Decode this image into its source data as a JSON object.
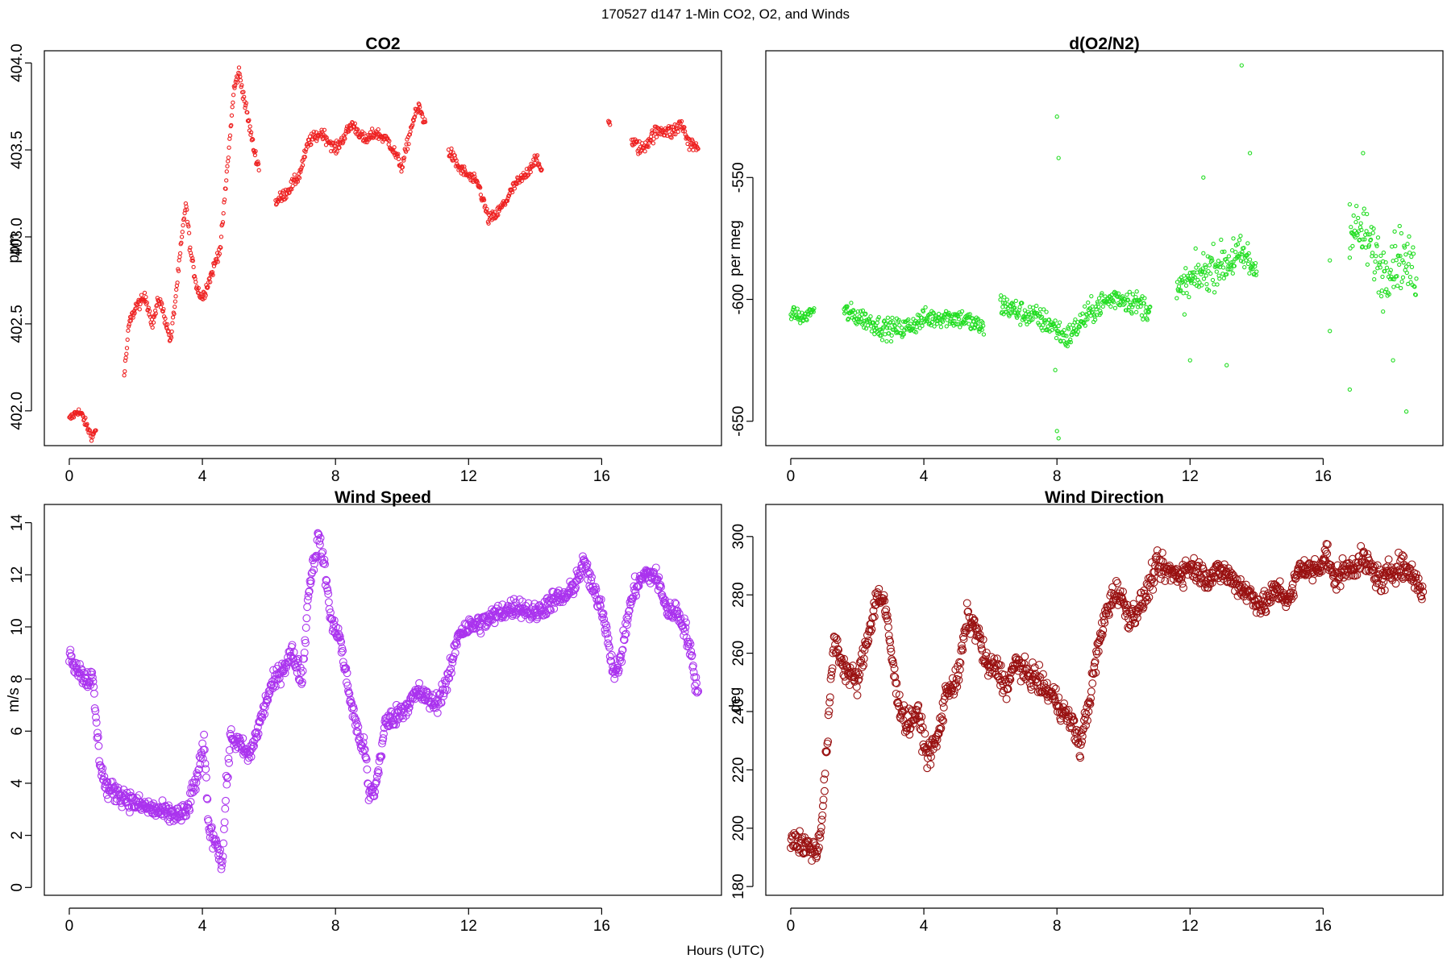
{
  "figure": {
    "title": "170527   d147   1-Min CO2, O2, and Winds",
    "xlabel": "Hours (UTC)"
  },
  "chart_data": [
    {
      "type": "scatter",
      "title": "CO2",
      "ylabel": "ppm",
      "xlabel": "",
      "xlim": [
        -0.75,
        19.6
      ],
      "ylim": [
        401.8,
        404.07
      ],
      "xticks": [
        0,
        4,
        8,
        12,
        16
      ],
      "yticks": [
        402.0,
        402.5,
        403.0,
        403.5,
        404.0
      ],
      "ytick_labels": [
        "402.0",
        "402.5",
        "403.0",
        "403.5",
        "404.0"
      ],
      "color": "#ee2222",
      "marker_size": "small",
      "grid": false,
      "segments": [
        {
          "x": [
            0.0,
            0.25,
            0.4,
            0.55,
            0.7,
            0.8
          ],
          "y": [
            401.95,
            402.0,
            401.97,
            401.9,
            401.85,
            401.9
          ],
          "noise": 0.03
        },
        {
          "x": [
            1.65,
            1.8,
            2.0,
            2.3,
            2.5,
            2.7,
            2.85,
            3.05,
            3.25,
            3.5,
            3.65,
            3.85,
            4.0,
            4.3,
            4.55,
            4.75,
            4.95,
            5.1,
            5.35,
            5.55,
            5.7
          ],
          "y": [
            402.2,
            402.5,
            402.6,
            402.65,
            402.5,
            402.65,
            402.55,
            402.4,
            402.75,
            403.2,
            402.9,
            402.7,
            402.65,
            402.8,
            402.95,
            403.4,
            403.85,
            403.95,
            403.7,
            403.5,
            403.4
          ],
          "noise": 0.04
        },
        {
          "x": [
            6.2,
            6.5,
            6.9,
            7.2,
            7.6,
            8.0,
            8.5,
            8.9,
            9.2,
            9.6,
            10.0,
            10.3,
            10.5,
            10.7
          ],
          "y": [
            403.2,
            403.25,
            403.35,
            403.55,
            403.6,
            403.5,
            403.65,
            403.55,
            403.6,
            403.55,
            403.4,
            403.65,
            403.75,
            403.65
          ],
          "noise": 0.04
        },
        {
          "x": [
            11.4,
            11.7,
            12.0,
            12.3,
            12.6,
            12.8,
            13.1,
            13.4,
            13.7,
            14.0,
            14.2
          ],
          "y": [
            403.5,
            403.4,
            403.35,
            403.3,
            403.1,
            403.12,
            403.2,
            403.3,
            403.35,
            403.45,
            403.38
          ],
          "noise": 0.04
        },
        {
          "x": [
            16.2,
            16.25
          ],
          "y": [
            403.67,
            403.65
          ],
          "noise": 0.01
        },
        {
          "x": [
            16.9,
            17.2,
            17.5,
            17.8,
            18.1,
            18.4,
            18.6,
            18.9
          ],
          "y": [
            403.55,
            403.5,
            403.58,
            403.62,
            403.6,
            403.65,
            403.55,
            403.5
          ],
          "noise": 0.05
        }
      ]
    },
    {
      "type": "scatter",
      "title": "d(O2/N2)",
      "ylabel": "per meg",
      "xlabel": "",
      "xlim": [
        -0.75,
        19.6
      ],
      "ylim": [
        -660,
        -498
      ],
      "xticks": [
        0,
        4,
        8,
        12,
        16
      ],
      "yticks": [
        -650,
        -600,
        -550
      ],
      "ytick_labels": [
        "-650",
        "-600",
        "-550"
      ],
      "color": "#22dd22",
      "marker_size": "small",
      "grid": false,
      "segments": [
        {
          "x": [
            0.0,
            0.35,
            0.7
          ],
          "y": [
            -605,
            -608,
            -604
          ],
          "noise": 3
        },
        {
          "x": [
            1.6,
            2.2,
            2.8,
            3.4,
            4.0,
            4.6,
            5.2,
            5.8
          ],
          "y": [
            -605,
            -608,
            -612,
            -612,
            -608,
            -607,
            -608,
            -612
          ],
          "noise": 5
        },
        {
          "x": [
            6.3,
            6.8,
            7.3,
            7.8,
            8.3,
            8.8,
            9.3,
            9.8,
            10.3,
            10.8
          ],
          "y": [
            -602,
            -605,
            -607,
            -610,
            -616,
            -608,
            -602,
            -599,
            -601,
            -604
          ],
          "noise": 6
        },
        {
          "x": [
            11.6,
            12.1,
            12.6,
            13.1,
            13.6,
            14.0
          ],
          "y": [
            -598,
            -592,
            -587,
            -585,
            -582,
            -588
          ],
          "noise": 10
        },
        {
          "x": [
            16.8,
            17.3,
            17.8,
            18.3,
            18.8
          ],
          "y": [
            -570,
            -575,
            -588,
            -582,
            -590
          ],
          "noise": 14
        }
      ],
      "outliers": {
        "x": [
          8.0,
          8.05,
          8.0,
          8.05,
          7.95,
          13.55,
          12.4,
          13.3,
          13.8,
          16.2,
          16.8,
          17.2,
          17.8,
          18.1,
          18.5,
          16.2,
          16.8,
          13.1,
          12.0
        ],
        "y": [
          -525,
          -542,
          -654,
          -657,
          -629,
          -504,
          -550,
          -575,
          -540,
          -613,
          -637,
          -540,
          -605,
          -625,
          -646,
          -584,
          -561,
          -627,
          -625
        ]
      }
    },
    {
      "type": "scatter",
      "title": "Wind Speed",
      "ylabel": "m/s",
      "xlabel": "",
      "xlim": [
        -0.75,
        19.6
      ],
      "ylim": [
        -0.3,
        14.7
      ],
      "xticks": [
        0,
        4,
        8,
        12,
        16
      ],
      "yticks": [
        0,
        2,
        4,
        6,
        8,
        10,
        12,
        14
      ],
      "ytick_labels": [
        "0",
        "2",
        "4",
        "6",
        "8",
        "10",
        "12",
        "14"
      ],
      "color": "#aa33ee",
      "marker_size": "large",
      "grid": false,
      "segments": [
        {
          "x": [
            0.0,
            0.2,
            0.5,
            0.7,
            0.8,
            0.9,
            1.1,
            1.5,
            2.0,
            2.5,
            3.0,
            3.5,
            3.9,
            4.05,
            4.2,
            4.45,
            4.6,
            4.7,
            4.85,
            5.1,
            5.4,
            5.7,
            6.0,
            6.3,
            6.7,
            7.0,
            7.2,
            7.5,
            7.7,
            7.9,
            8.1,
            8.4,
            8.7,
            8.9,
            9.0,
            9.2,
            9.5,
            10.0,
            10.5,
            11.0,
            11.4,
            11.7,
            12.0,
            12.5,
            13.0,
            13.5,
            14.0,
            14.5,
            15.0,
            15.5,
            15.7,
            16.0,
            16.2,
            16.4,
            16.6,
            16.8,
            17.0,
            17.3,
            17.6,
            17.9,
            18.0,
            18.2,
            18.5,
            18.7,
            18.9
          ],
          "y": [
            9.0,
            8.5,
            8.0,
            8.0,
            6.5,
            5.0,
            3.8,
            3.6,
            3.2,
            3.0,
            2.8,
            2.8,
            4.5,
            5.5,
            2.2,
            1.7,
            0.8,
            3.5,
            5.8,
            5.5,
            5.0,
            6.2,
            7.5,
            8.2,
            9.0,
            8.0,
            11.5,
            13.5,
            12.0,
            10.0,
            9.8,
            7.5,
            5.8,
            5.2,
            3.5,
            3.8,
            6.3,
            6.8,
            7.5,
            7.0,
            8.0,
            9.8,
            10.0,
            10.2,
            10.6,
            10.8,
            10.5,
            11.0,
            11.2,
            12.5,
            11.5,
            10.8,
            9.5,
            8.0,
            9.0,
            10.5,
            11.5,
            12.0,
            12.0,
            11.0,
            10.5,
            10.7,
            10.0,
            8.8,
            7.3
          ],
          "noise": 0.45
        }
      ]
    },
    {
      "type": "scatter",
      "title": "Wind Direction",
      "ylabel": "deg",
      "xlabel": "",
      "xlim": [
        -0.75,
        19.6
      ],
      "ylim": [
        177,
        311
      ],
      "xticks": [
        0,
        4,
        8,
        12,
        16
      ],
      "yticks": [
        180,
        200,
        220,
        240,
        260,
        280,
        300
      ],
      "ytick_labels": [
        "180",
        "200",
        "220",
        "240",
        "260",
        "280",
        "300"
      ],
      "color": "#991111",
      "marker_size": "large",
      "grid": false,
      "segments": [
        {
          "x": [
            0.0,
            0.3,
            0.6,
            0.8,
            0.95,
            1.1,
            1.3,
            1.6,
            2.0,
            2.3,
            2.6,
            2.8,
            3.0,
            3.2,
            3.5,
            3.8,
            4.1,
            4.4,
            4.7,
            5.0,
            5.3,
            5.6,
            5.9,
            6.2,
            6.5,
            6.8,
            7.0,
            7.3,
            7.6,
            7.9,
            8.2,
            8.5,
            8.7,
            8.9,
            9.0,
            9.2,
            9.5,
            9.8,
            10.2,
            10.6,
            11.0,
            11.3,
            11.7,
            12.0,
            12.5,
            13.0,
            13.4,
            13.8,
            14.2,
            14.6,
            15.0,
            15.3,
            15.6,
            15.9,
            16.1,
            16.3,
            16.6,
            16.9,
            17.2,
            17.5,
            17.8,
            18.0,
            18.3,
            18.6,
            18.8,
            19.0
          ],
          "y": [
            197,
            195,
            193,
            192,
            205,
            230,
            265,
            255,
            250,
            265,
            280,
            278,
            262,
            245,
            235,
            240,
            225,
            230,
            248,
            250,
            272,
            268,
            255,
            255,
            248,
            258,
            253,
            252,
            248,
            245,
            240,
            235,
            228,
            240,
            245,
            260,
            275,
            282,
            272,
            278,
            290,
            288,
            287,
            290,
            286,
            288,
            284,
            280,
            276,
            282,
            278,
            290,
            288,
            290,
            295,
            285,
            288,
            290,
            292,
            288,
            284,
            288,
            290,
            288,
            285,
            281
          ],
          "noise": 5
        }
      ]
    }
  ]
}
